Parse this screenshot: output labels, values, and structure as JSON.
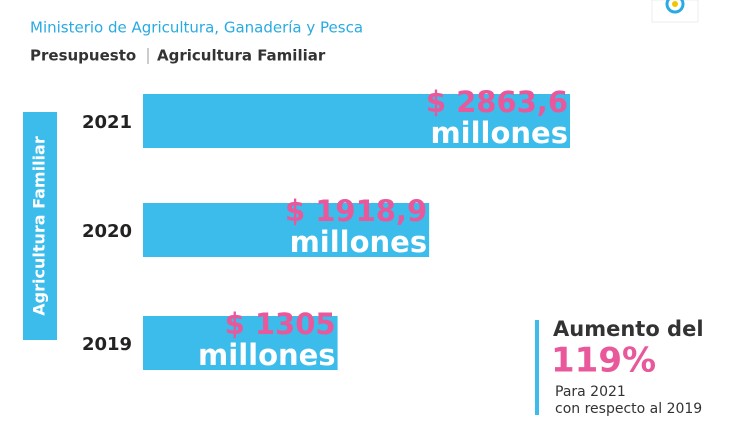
{
  "chart_data": {
    "type": "bar",
    "title": "Ministerio de Agricultura, Ganadería y Pesca",
    "subtitle": [
      "Presupuesto",
      "Agricultura Familiar"
    ],
    "ylabel": "Agricultura Familiar",
    "categories": [
      "2021",
      "2020",
      "2019"
    ],
    "values": [
      2863.6,
      1918.9,
      1305
    ],
    "value_labels": [
      "$ 2863,6",
      "$ 1918,9",
      "$ 1305"
    ],
    "unit_label": "millones",
    "color": "#3bbceb",
    "label_color": "#e8589a",
    "annotation": {
      "title": "Aumento del",
      "increase": {
        "value": 119,
        "label": "119%"
      },
      "note": [
        "Para 2021",
        "con respecto al 2019"
      ]
    }
  }
}
